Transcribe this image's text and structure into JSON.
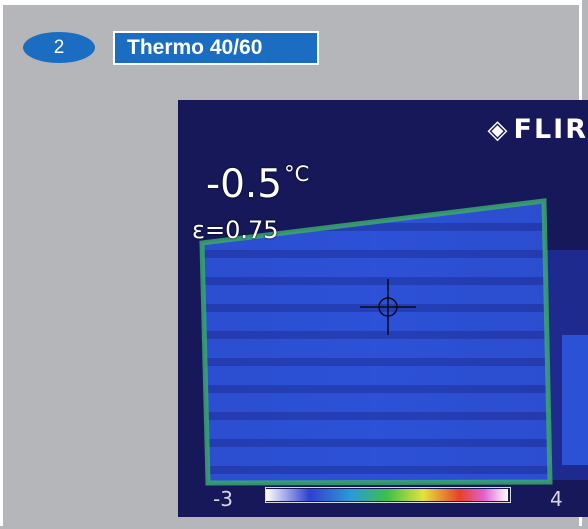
{
  "badge": {
    "number": "2"
  },
  "title": "Thermo 40/60",
  "camera": {
    "brand": "FLIR",
    "brand_logo_icon": "flir-diamond-logo-icon",
    "temperature": "-0.5",
    "temperature_unit": "°C",
    "emissivity": "ε=0.75",
    "scale_min": "-3",
    "scale_max": "4"
  },
  "colors": {
    "badge_blue": "#1b6dc1",
    "background_gray": "#b4b6b9",
    "thermal_dark": "#17185a",
    "thermal_blue": "#2a4fd6",
    "edge_green": "#3ba86e"
  }
}
